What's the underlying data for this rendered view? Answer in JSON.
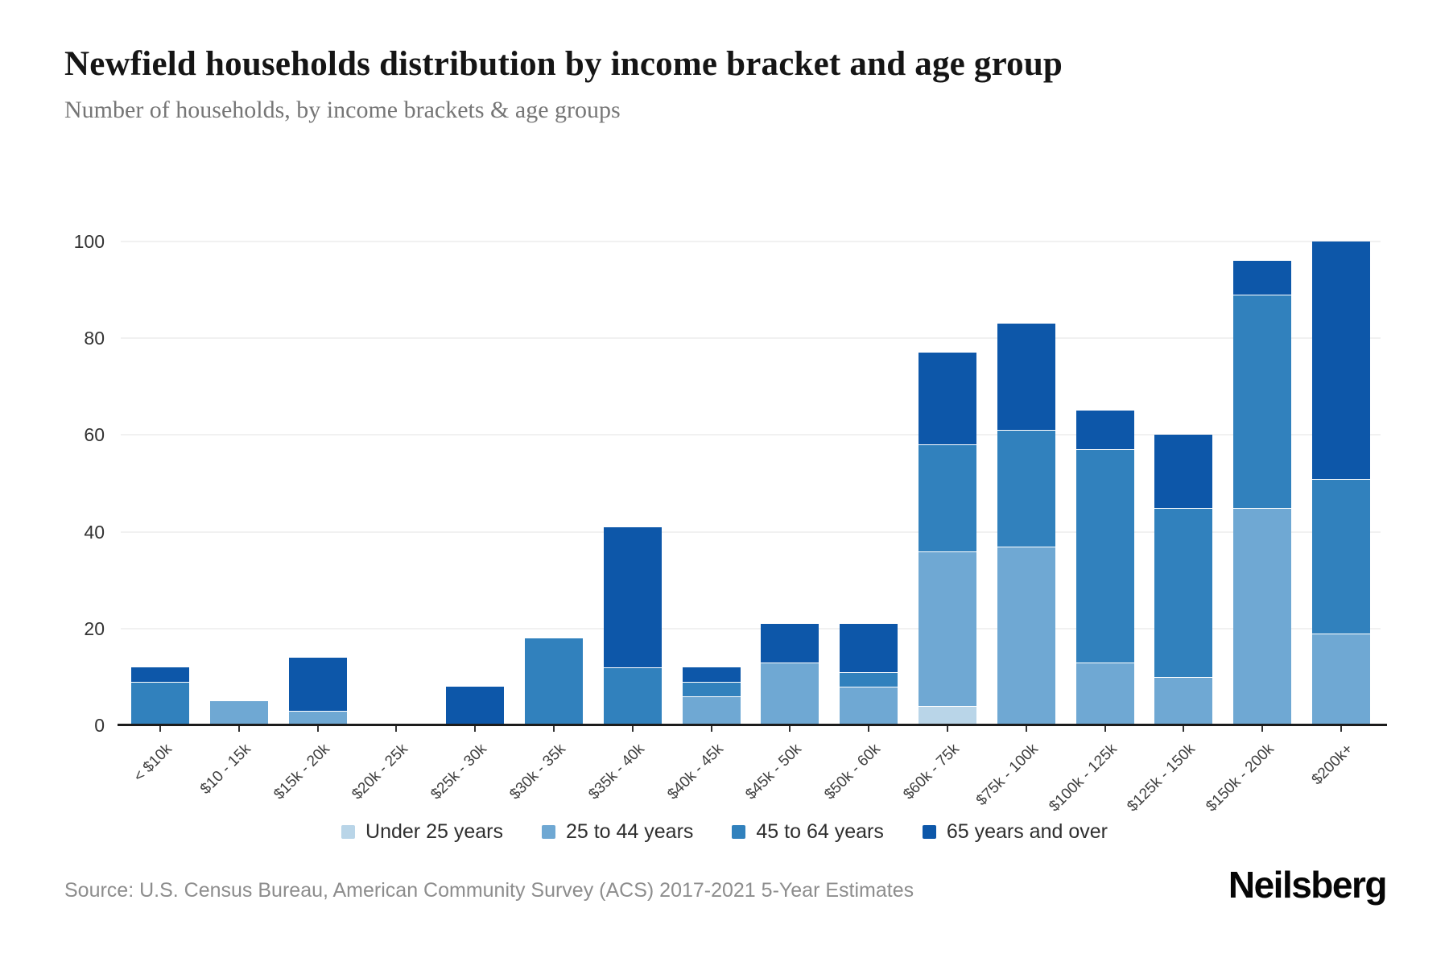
{
  "header": {
    "title": "Newfield households distribution by income bracket and age group",
    "subtitle": "Number of households, by income brackets & age groups"
  },
  "chart_data": {
    "type": "bar",
    "stacked": true,
    "title": "Newfield households distribution by income bracket and age group",
    "subtitle": "Number of households, by income brackets & age groups",
    "categories": [
      "< $10k",
      "$10 - 15k",
      "$15k - 20k",
      "$20k - 25k",
      "$25k - 30k",
      "$30k - 35k",
      "$35k - 40k",
      "$40k - 45k",
      "$45k - 50k",
      "$50k - 60k",
      "$60k - 75k",
      "$75k - 100k",
      "$100k - 125k",
      "$125k - 150k",
      "$150k - 200k",
      "$200k+"
    ],
    "series": [
      {
        "name": "Under 25 years",
        "color": "#b9d5e8",
        "values": [
          0,
          0,
          0,
          0,
          0,
          0,
          0,
          0,
          0,
          0,
          4,
          0,
          0,
          0,
          0,
          0
        ]
      },
      {
        "name": "25 to 44 years",
        "color": "#6fa8d3",
        "values": [
          0,
          5,
          3,
          0,
          0,
          0,
          0,
          6,
          13,
          8,
          32,
          37,
          13,
          10,
          45,
          19
        ]
      },
      {
        "name": "45 to 64 years",
        "color": "#3181bd",
        "values": [
          9,
          0,
          0,
          0,
          0,
          18,
          12,
          3,
          0,
          3,
          22,
          24,
          44,
          35,
          44,
          32
        ]
      },
      {
        "name": "65 years and over",
        "color": "#0d57a9",
        "values": [
          3,
          0,
          11,
          0,
          8,
          0,
          29,
          3,
          8,
          10,
          19,
          22,
          8,
          15,
          7,
          49
        ]
      }
    ],
    "totals": [
      12,
      5,
      14,
      0,
      8,
      18,
      41,
      12,
      21,
      21,
      77,
      83,
      65,
      60,
      96,
      100
    ],
    "ylabel": "",
    "xlabel": "",
    "ylim": [
      0,
      100
    ],
    "yticks": [
      0,
      20,
      40,
      60,
      80,
      100
    ],
    "grid": "horizontal",
    "legend_position": "bottom"
  },
  "footer": {
    "source": "Source: U.S. Census Bureau, American Community Survey (ACS) 2017-2021 5-Year Estimates",
    "brand": "Neilsberg"
  }
}
